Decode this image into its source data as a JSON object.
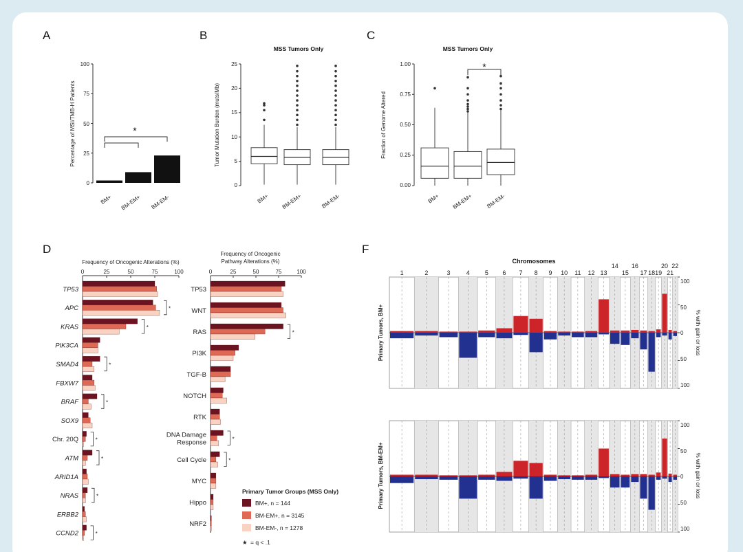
{
  "colors": {
    "background_border": "#dceaf1",
    "dark_red": "#6b1320",
    "mid_red": "#de6a55",
    "light_red": "#f9d2c2",
    "gain": "#cc2428",
    "loss": "#22308f"
  },
  "panels": {
    "A": {
      "letter": "A",
      "ylabel": "Percentage of MSI/TMB-H Patients",
      "yticks": [
        "0",
        "25",
        "50",
        "75",
        "100"
      ],
      "star": "*"
    },
    "B": {
      "letter": "B",
      "title": "MSS Tumors Only",
      "ylabel": "Tumor Mutation Burden (muts/Mb)",
      "yticks": [
        "0",
        "5",
        "10",
        "15",
        "20",
        "25"
      ]
    },
    "C": {
      "letter": "C",
      "title": "MSS Tumors Only",
      "ylabel": "Fraction of Genome Altered",
      "yticks": [
        "0.00",
        "0.25",
        "0.50",
        "0.75",
        "1.00"
      ],
      "star": "*"
    },
    "D": {
      "letter": "D",
      "gene_title": "Frequency of Oncogenic Alterations (%)",
      "pathway_title_1": "Frequency of Oncogenic",
      "pathway_title_2": "Pathway Alterations (%)",
      "xticks": [
        "0",
        "25",
        "50",
        "75",
        "100"
      ],
      "legend_title": "Primary Tumor Groups (MSS Only)",
      "legend_items": [
        "BM+, n = 144",
        "BM-EM+, n = 3145",
        "BM-EM-, n = 1278"
      ],
      "legend_star_symbol": "★",
      "legend_star_text": "= q < .1",
      "sig_star": "*"
    },
    "F": {
      "letter": "F",
      "chrom_title": "Chromosomes",
      "chrom_labels": [
        "1",
        "2",
        "3",
        "4",
        "5",
        "6",
        "7",
        "8",
        "9",
        "10",
        "11",
        "12",
        "13",
        "14",
        "15",
        "16",
        "17",
        "18",
        "19",
        "20",
        "21",
        "22"
      ],
      "top_ylabel": "Primary Tumors, BM+",
      "bottom_ylabel": "Primary Tumors, BM-EM+",
      "right_label": "% with gain or loss",
      "right_ticks": [
        "100",
        "50",
        "0",
        "50",
        "100"
      ]
    }
  },
  "chart_data": [
    {
      "id": "A",
      "type": "bar",
      "title": "",
      "ylabel": "Percentage of MSI/TMB-H Patients",
      "ylim": [
        0,
        100
      ],
      "categories": [
        "BM+",
        "BM-EM+",
        "BM-EM-"
      ],
      "values": [
        2,
        9,
        23
      ]
    },
    {
      "id": "B",
      "type": "box",
      "title": "MSS Tumors Only",
      "ylabel": "Tumor Mutation Burden (muts/Mb)",
      "ylim": [
        0,
        25
      ],
      "categories": [
        "BM+",
        "BM-EM+",
        "BM-EM-"
      ],
      "boxes": [
        {
          "min": 0.2,
          "q1": 4.5,
          "median": 6.0,
          "q3": 7.8,
          "max": 12.5,
          "outliers": [
            13.5,
            15.5,
            16.5,
            16.9
          ]
        },
        {
          "min": 0.2,
          "q1": 4.3,
          "median": 5.8,
          "q3": 7.4,
          "max": 12.0,
          "outliers": [
            12.5,
            13.5,
            14.5,
            15.5,
            16.5,
            17.5,
            18.5,
            19.5,
            20.5,
            21.5,
            22.5,
            23.5,
            24.6
          ]
        },
        {
          "min": 0.2,
          "q1": 4.3,
          "median": 5.8,
          "q3": 7.4,
          "max": 12.0,
          "outliers": [
            12.5,
            13.5,
            14.5,
            15.5,
            16.5,
            17.5,
            18.5,
            19.5,
            20.5,
            21.5,
            22.5,
            23.5,
            24.6
          ]
        }
      ]
    },
    {
      "id": "C",
      "type": "box",
      "title": "MSS Tumors Only",
      "ylabel": "Fraction of Genome Altered",
      "ylim": [
        0,
        1
      ],
      "categories": [
        "BM+",
        "BM-EM+",
        "BM-EM-"
      ],
      "boxes": [
        {
          "min": 0.0,
          "q1": 0.06,
          "median": 0.16,
          "q3": 0.31,
          "max": 0.64,
          "outliers": [
            0.8
          ]
        },
        {
          "min": 0.0,
          "q1": 0.06,
          "median": 0.16,
          "q3": 0.28,
          "max": 0.6,
          "outliers": [
            0.61,
            0.63,
            0.65,
            0.67,
            0.7,
            0.75,
            0.8,
            0.89
          ]
        },
        {
          "min": 0.0,
          "q1": 0.09,
          "median": 0.19,
          "q3": 0.3,
          "max": 0.62,
          "outliers": [
            0.63,
            0.66,
            0.7,
            0.75,
            0.8,
            0.84,
            0.9
          ]
        }
      ]
    },
    {
      "id": "D-genes",
      "type": "bar",
      "orientation": "horizontal",
      "title": "Frequency of Oncogenic Alterations (%)",
      "xlim": [
        0,
        100
      ],
      "categories": [
        "TP53",
        "APC",
        "KRAS",
        "PIK3CA",
        "SMAD4",
        "FBXW7",
        "BRAF",
        "SOX9",
        "Chr. 20Q",
        "ATM",
        "ARID1A",
        "NRAS",
        "ERBB2",
        "CCND2"
      ],
      "series": [
        {
          "name": "BM+, n = 144",
          "values": [
            75,
            73,
            57,
            18,
            18,
            10,
            15,
            6,
            4,
            10,
            4,
            5,
            2,
            4
          ]
        },
        {
          "name": "BM-EM+, n = 3145",
          "values": [
            77,
            76,
            45,
            16,
            10,
            12,
            6,
            8,
            3,
            5,
            5,
            3,
            3,
            2
          ]
        },
        {
          "name": "BM-EM-, n = 1278",
          "values": [
            78,
            80,
            38,
            16,
            12,
            13,
            9,
            10,
            1,
            3,
            6,
            3,
            4,
            1
          ]
        }
      ],
      "significant": [
        "APC",
        "KRAS",
        "SMAD4",
        "BRAF",
        "Chr. 20Q",
        "ATM",
        "NRAS",
        "CCND2"
      ]
    },
    {
      "id": "D-pathways",
      "type": "bar",
      "orientation": "horizontal",
      "title": "Frequency of Oncogenic Pathway Alterations (%)",
      "xlim": [
        0,
        100
      ],
      "categories": [
        "TP53",
        "WNT",
        "RAS",
        "PI3K",
        "TGF-B",
        "NOTCH",
        "RTK",
        "DNA Damage Response",
        "Cell Cycle",
        "MYC",
        "Hippo",
        "NRF2"
      ],
      "series": [
        {
          "name": "BM+, n = 144",
          "values": [
            82,
            78,
            80,
            31,
            22,
            14,
            10,
            14,
            10,
            6,
            3,
            1
          ]
        },
        {
          "name": "BM-EM+, n = 3145",
          "values": [
            78,
            80,
            60,
            27,
            22,
            13,
            10,
            7,
            6,
            6,
            3,
            1
          ]
        },
        {
          "name": "BM-EM-, n = 1278",
          "values": [
            80,
            83,
            49,
            25,
            16,
            18,
            11,
            9,
            8,
            6,
            3,
            1
          ]
        }
      ],
      "significant": [
        "RAS",
        "DNA Damage Response",
        "Cell Cycle"
      ]
    },
    {
      "id": "F",
      "type": "area",
      "title": "Chromosomes",
      "ylabel": "% with gain or loss",
      "ylim": [
        -100,
        100
      ],
      "categories": [
        "1",
        "2",
        "3",
        "4",
        "5",
        "6",
        "7",
        "8",
        "9",
        "10",
        "11",
        "12",
        "13",
        "14",
        "15",
        "16",
        "17",
        "18",
        "19",
        "20",
        "21",
        "22"
      ],
      "series": [
        {
          "name": "Primary Tumors, BM+",
          "gain": [
            3,
            3,
            2,
            2,
            4,
            8,
            30,
            25,
            3,
            2,
            2,
            3,
            60,
            4,
            4,
            5,
            4,
            3,
            6,
            70,
            5,
            3
          ],
          "loss": [
            10,
            5,
            8,
            45,
            8,
            10,
            4,
            35,
            12,
            5,
            8,
            8,
            3,
            20,
            22,
            10,
            30,
            70,
            8,
            5,
            12,
            6
          ]
        },
        {
          "name": "Primary Tumors, BM-EM+",
          "gain": [
            3,
            3,
            2,
            2,
            3,
            8,
            28,
            24,
            3,
            2,
            2,
            3,
            50,
            4,
            3,
            4,
            4,
            3,
            7,
            68,
            5,
            3
          ],
          "loss": [
            12,
            5,
            6,
            40,
            6,
            8,
            4,
            40,
            8,
            5,
            6,
            6,
            3,
            20,
            20,
            10,
            40,
            60,
            6,
            4,
            10,
            6
          ]
        }
      ]
    }
  ]
}
